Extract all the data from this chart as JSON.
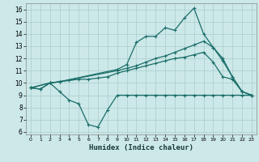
{
  "xlabel": "Humidex (Indice chaleur)",
  "background_color": "#cce8e8",
  "grid_color": "#aacccc",
  "line_color": "#1a6e6a",
  "xlim": [
    -0.5,
    23.5
  ],
  "ylim": [
    5.8,
    16.5
  ],
  "xticks": [
    0,
    1,
    2,
    3,
    4,
    5,
    6,
    7,
    8,
    9,
    10,
    11,
    12,
    13,
    14,
    15,
    16,
    17,
    18,
    19,
    20,
    21,
    22,
    23
  ],
  "yticks": [
    6,
    7,
    8,
    9,
    10,
    11,
    12,
    13,
    14,
    15,
    16
  ],
  "line1_x": [
    0,
    1,
    2,
    3,
    4,
    5,
    6,
    7,
    8,
    9,
    10,
    11,
    12,
    13,
    14,
    15,
    16,
    17,
    18,
    19,
    20,
    21,
    22,
    23
  ],
  "line1_y": [
    9.6,
    9.5,
    10.0,
    9.3,
    8.6,
    8.3,
    6.6,
    6.4,
    7.8,
    9.0,
    9.0,
    9.0,
    9.0,
    9.0,
    9.0,
    9.0,
    9.0,
    9.0,
    9.0,
    9.0,
    9.0,
    9.0,
    9.0,
    9.0
  ],
  "line2_x": [
    0,
    1,
    2,
    3,
    4,
    5,
    6,
    7,
    8,
    9,
    10,
    11,
    12,
    13,
    14,
    15,
    16,
    17,
    18,
    19,
    20,
    21,
    22,
    23
  ],
  "line2_y": [
    9.6,
    9.5,
    10.0,
    10.1,
    10.2,
    10.3,
    10.3,
    10.4,
    10.5,
    10.8,
    11.0,
    11.2,
    11.4,
    11.6,
    11.8,
    12.0,
    12.1,
    12.3,
    12.5,
    11.7,
    10.5,
    10.3,
    9.3,
    9.0
  ],
  "line3_x": [
    0,
    2,
    3,
    9,
    10,
    11,
    12,
    13,
    14,
    15,
    16,
    17,
    18,
    19,
    20,
    21,
    22,
    23
  ],
  "line3_y": [
    9.6,
    10.0,
    10.1,
    11.0,
    11.2,
    11.4,
    11.7,
    12.0,
    12.2,
    12.5,
    12.8,
    13.1,
    13.4,
    12.9,
    12.0,
    10.5,
    9.3,
    9.0
  ],
  "line4_x": [
    0,
    2,
    3,
    9,
    10,
    11,
    12,
    13,
    14,
    15,
    16,
    17,
    18,
    19,
    20,
    21,
    22,
    23
  ],
  "line4_y": [
    9.6,
    10.0,
    10.1,
    11.1,
    11.5,
    13.3,
    13.8,
    13.8,
    14.5,
    14.3,
    15.3,
    16.1,
    14.0,
    12.9,
    11.8,
    10.5,
    9.3,
    9.0
  ]
}
